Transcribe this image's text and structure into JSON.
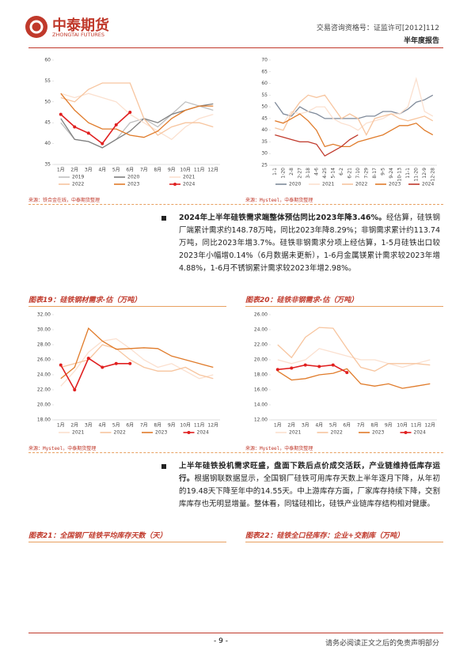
{
  "header": {
    "logo": "中泰期货",
    "logo_en": "ZHONGTAI FUTURES",
    "license": "交易咨询资格号：证监许可[2012]112",
    "report": "半年度报告"
  },
  "charts": [
    {
      "type": "line",
      "source": "来源：铁合金在线，中泰期货整理",
      "categories": [
        "1月",
        "2月",
        "3月",
        "4月",
        "5月",
        "6月",
        "7月",
        "8月",
        "9月",
        "10月",
        "11月",
        "12月"
      ],
      "ylim": [
        35,
        60
      ],
      "yticks": [
        35,
        40,
        45,
        50,
        55,
        60
      ],
      "series": [
        {
          "name": "2019",
          "color": "#bfbfbf",
          "values": [
            45,
            41,
            40.5,
            39,
            41,
            45,
            46,
            44,
            47,
            50,
            49,
            48
          ]
        },
        {
          "name": "2020",
          "color": "#7f7f7f",
          "values": [
            46,
            41,
            40.5,
            39,
            41,
            43,
            46,
            45,
            47,
            48,
            49,
            49.5
          ]
        },
        {
          "name": "2021",
          "color": "#fbe0cf",
          "values": [
            52,
            51,
            52,
            51,
            50,
            47,
            45,
            43,
            41,
            44,
            46,
            47
          ]
        },
        {
          "name": "2022",
          "color": "#f7c59f",
          "values": [
            51,
            50,
            53,
            54.5,
            54.5,
            54.5,
            46,
            42,
            44,
            45,
            45,
            44
          ]
        },
        {
          "name": "2023",
          "color": "#e07b2a",
          "values": [
            52,
            48,
            45,
            43.5,
            43.5,
            42,
            41.5,
            43,
            46,
            48,
            49,
            49
          ]
        },
        {
          "name": "2024",
          "color": "#e02020",
          "marker": true,
          "values": [
            47,
            44,
            42.5,
            40,
            44.5,
            47.5,
            null,
            null,
            null,
            null,
            null,
            null
          ]
        }
      ]
    },
    {
      "type": "line",
      "source": "来源：Mysteel，中泰期货整理",
      "categories": [
        "1-1",
        "1-20",
        "2-8",
        "2-27",
        "3-18",
        "4-6",
        "4-25",
        "5-14",
        "6-2",
        "6-21",
        "7-10",
        "7-29",
        "8-17",
        "9-5",
        "9-24",
        "10-13",
        "11-1",
        "11-20",
        "12-9",
        "12-28"
      ],
      "ylim": [
        25,
        70
      ],
      "yticks": [
        25,
        30,
        35,
        40,
        45,
        50,
        55,
        60,
        65,
        70
      ],
      "series": [
        {
          "name": "2020",
          "color": "#7f8a9a",
          "values": [
            52,
            47,
            46,
            50,
            48,
            47,
            45,
            45,
            45,
            45,
            45,
            46,
            46,
            48,
            48,
            47,
            49,
            52,
            53,
            55
          ]
        },
        {
          "name": "2021",
          "color": "#fbe0cf",
          "values": [
            44,
            43,
            48,
            47,
            48,
            50,
            50,
            45,
            43,
            42,
            40,
            43,
            44,
            45,
            47,
            47,
            50,
            62,
            48,
            46
          ]
        },
        {
          "name": "2022",
          "color": "#f7c59f",
          "values": [
            41,
            40,
            47,
            52,
            55,
            54,
            55,
            50,
            45,
            47,
            45,
            38,
            45,
            46,
            47,
            45,
            44,
            45,
            46,
            44
          ]
        },
        {
          "name": "2023",
          "color": "#e07b2a",
          "values": [
            44,
            43,
            45,
            47,
            44,
            40,
            33,
            34,
            33,
            33,
            35,
            36,
            37,
            38,
            40,
            42,
            42,
            43,
            40,
            38
          ]
        },
        {
          "name": "2024",
          "color": "#c0392b",
          "values": [
            38,
            37,
            36,
            35,
            35,
            34,
            29,
            31,
            33,
            36,
            38,
            null,
            null,
            null,
            null,
            null,
            null,
            null,
            null,
            null
          ]
        }
      ]
    },
    {
      "type": "line",
      "title": "图表19：硅铁钢材需求-估（万吨）",
      "source": "来源：Mysteel，中泰期货整理",
      "categories": [
        "1月",
        "2月",
        "3月",
        "4月",
        "5月",
        "6月",
        "7月",
        "8月",
        "9月",
        "10月",
        "11月",
        "12月"
      ],
      "ylim": [
        18,
        32
      ],
      "yticks": [
        {
          "value": 18,
          "label": "18.00"
        },
        {
          "value": 20,
          "label": "20.00"
        },
        {
          "value": 22,
          "label": "22.00"
        },
        {
          "value": 24,
          "label": "24.00"
        },
        {
          "value": 26,
          "label": "26.00"
        },
        {
          "value": 28,
          "label": "28.00"
        },
        {
          "value": 30,
          "label": "30.00"
        },
        {
          "value": 32,
          "label": "32.00"
        }
      ],
      "series": [
        {
          "name": "2021",
          "color": "#fbe0cf",
          "values": [
            22.5,
            24.5,
            27,
            28.5,
            28.8,
            27.5,
            26,
            25,
            25.5,
            24.5,
            23.5,
            24
          ]
        },
        {
          "name": "2022",
          "color": "#f7c59f",
          "values": [
            25,
            25.5,
            26,
            28,
            27.5,
            26,
            25,
            24.5,
            24.5,
            25,
            24,
            23.5
          ]
        },
        {
          "name": "2023",
          "color": "#e07b2a",
          "values": [
            23.5,
            25,
            30.2,
            28.5,
            27.4,
            27.5,
            27.6,
            27.5,
            26.5,
            26,
            25.5,
            25
          ]
        },
        {
          "name": "2024",
          "color": "#e02020",
          "marker": true,
          "values": [
            25.3,
            22,
            26.2,
            25,
            25.5,
            25.5,
            null,
            null,
            null,
            null,
            null,
            null
          ]
        }
      ]
    },
    {
      "type": "line",
      "title": "图表20：硅铁非钢需求-估（万吨）",
      "source": "来源：Mysteel，中泰期货整理",
      "categories": [
        "1月",
        "2月",
        "3月",
        "4月",
        "5月",
        "6月",
        "7月",
        "8月",
        "9月",
        "10月",
        "11月",
        "12月"
      ],
      "ylim": [
        12,
        26
      ],
      "yticks": [
        {
          "value": 12,
          "label": "12.00"
        },
        {
          "value": 14,
          "label": "14.00"
        },
        {
          "value": 16,
          "label": "16.00"
        },
        {
          "value": 18,
          "label": "18.00"
        },
        {
          "value": 20,
          "label": "20.00"
        },
        {
          "value": 22,
          "label": "22.00"
        },
        {
          "value": 24,
          "label": "24.00"
        },
        {
          "value": 26,
          "label": "26.00"
        }
      ],
      "series": [
        {
          "name": "2021",
          "color": "#fbe0cf",
          "values": [
            20,
            19.5,
            20,
            21.5,
            21,
            20.5,
            20,
            20,
            19.5,
            19,
            19.5,
            20
          ]
        },
        {
          "name": "2022",
          "color": "#f7c59f",
          "values": [
            22,
            20.3,
            23,
            24.3,
            24.2,
            21.5,
            19,
            18.5,
            19.5,
            19.5,
            19.5,
            19.3
          ]
        },
        {
          "name": "2023",
          "color": "#e07b2a",
          "values": [
            18.5,
            17.3,
            17.5,
            18,
            18.2,
            18.8,
            16.8,
            16.5,
            16.8,
            16.2,
            16.5,
            16.8
          ]
        },
        {
          "name": "2024",
          "color": "#e02020",
          "marker": true,
          "values": [
            18.7,
            18.9,
            19.3,
            19.1,
            19.3,
            18.3,
            null,
            null,
            null,
            null,
            null,
            null
          ]
        }
      ]
    }
  ],
  "paragraphs": [
    {
      "lead": "2024年上半年硅铁需求端整体预估同比2023年降3.46%。",
      "text": "经估算，硅铁钢厂端累计需求约148.78万吨，同比2023年降8.29%；非钢需求累计约113.74万吨，同比2023年增3.7%。硅铁非钢需求分项上经估算，1-5月硅铁出口较2023年小幅增0.14%（6月数据未更新），1-6月金属镁累计需求较2023年增4.88%，1-6月不锈钢累计需求较2023年增2.98%。"
    },
    {
      "lead": "上半年硅铁投机需求旺盛，盘面下跌后点价成交活跃，产业链维持低库存运行。",
      "text": "根据钢联数据显示，全国钢厂硅铁可用库存天数上半年逐月下降，从年初的19.48天下降至年中的14.55天。中上游库存方面，厂家库存持续下降，交割库库存也无明显增量。整体看，同锰硅相比，硅铁产业链库存结构相对健康。"
    }
  ],
  "figure_titles": [
    "图表21：全国钢厂硅铁平均库存天数（天）",
    "图表22：硅铁全口径库存：企业+交割库（万吨）"
  ],
  "footer": {
    "page": "- 9 -",
    "disclaimer": "请务必阅读正文之后的免责声明部分"
  }
}
